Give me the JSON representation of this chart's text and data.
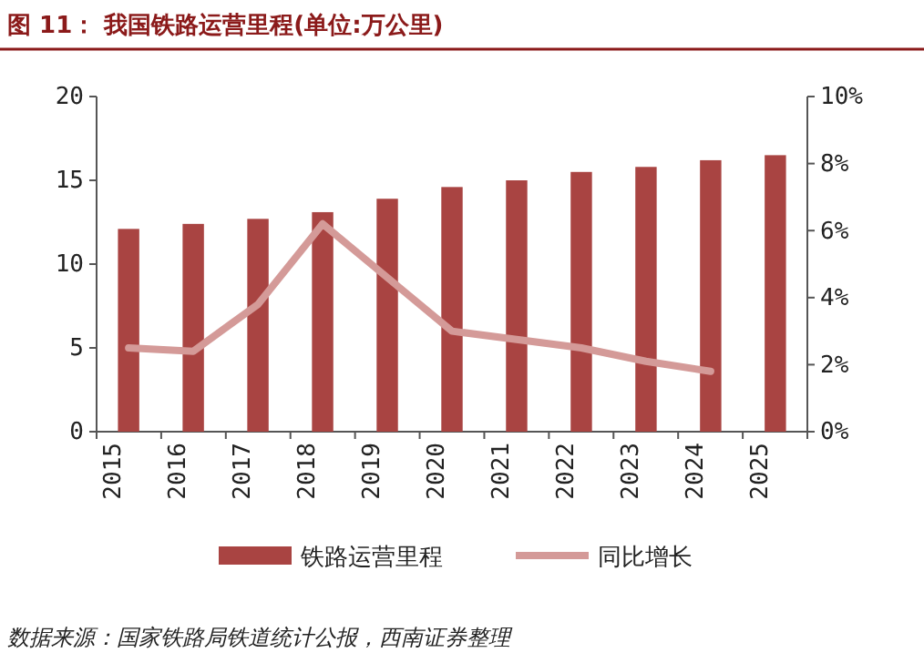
{
  "chart_data": {
    "type": "bar",
    "title": "图 11：  我国铁路运营里程(单位:万公里)",
    "categories": [
      "2015",
      "2016",
      "2017",
      "2018",
      "2019",
      "2020",
      "2021",
      "2022",
      "2023",
      "2024",
      "2025"
    ],
    "series": [
      {
        "name": "铁路运营里程",
        "color": "#a94442",
        "values": [
          12.1,
          12.4,
          12.7,
          13.1,
          13.9,
          14.6,
          15.0,
          15.5,
          15.8,
          16.2,
          16.5
        ]
      },
      {
        "name": "同比增长",
        "type": "line",
        "axis": "y2",
        "color": "#d49a98",
        "values": [
          2.5,
          2.4,
          3.8,
          6.2,
          4.6,
          3.0,
          2.75,
          2.5,
          2.1,
          1.8,
          null
        ]
      }
    ],
    "ylim": [
      0,
      20
    ],
    "yticks": [
      0,
      5,
      10,
      15,
      20
    ],
    "y2lim": [
      0,
      10
    ],
    "y2ticks": [
      {
        "value": 0,
        "label": "0%"
      },
      {
        "value": 2,
        "label": "2%"
      },
      {
        "value": 4,
        "label": "4%"
      },
      {
        "value": 6,
        "label": "6%"
      },
      {
        "value": 8,
        "label": "8%"
      },
      {
        "value": 10,
        "label": "10%"
      }
    ],
    "legend": "bottom",
    "grid": false,
    "annotations": [
      "数据来源：国家铁路局铁道统计公报，西南证券整理"
    ]
  }
}
